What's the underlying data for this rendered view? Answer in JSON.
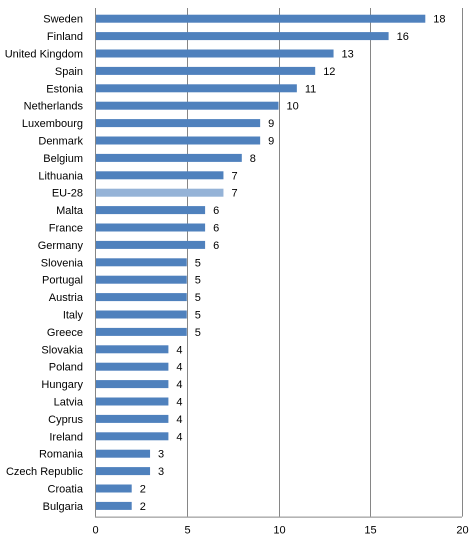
{
  "chart_data": {
    "type": "bar",
    "orientation": "horizontal",
    "title": "",
    "xlabel": "",
    "ylabel": "",
    "categories": [
      "Sweden",
      "Finland",
      "United Kingdom",
      "Spain",
      "Estonia",
      "Netherlands",
      "Luxembourg",
      "Denmark",
      "Belgium",
      "Lithuania",
      "EU-28",
      "Malta",
      "France",
      "Germany",
      "Slovenia",
      "Portugal",
      "Austria",
      "Italy",
      "Greece",
      "Slovakia",
      "Poland",
      "Hungary",
      "Latvia",
      "Cyprus",
      "Ireland",
      "Romania",
      "Czech Republic",
      "Croatia",
      "Bulgaria"
    ],
    "values": [
      18,
      16,
      13,
      12,
      11,
      10,
      9,
      9,
      8,
      7,
      7,
      6,
      6,
      6,
      5,
      5,
      5,
      5,
      5,
      4,
      4,
      4,
      4,
      4,
      4,
      3,
      3,
      2,
      2
    ],
    "highlight_category": "EU-28",
    "xlim": [
      0,
      20
    ],
    "xticks": [
      0,
      5,
      10,
      15,
      20
    ],
    "grid": "vertical",
    "data_labels": true,
    "colors": {
      "bar": "#4f81bd",
      "highlight_bar": "#95b3d7",
      "grid": "#868686"
    }
  }
}
